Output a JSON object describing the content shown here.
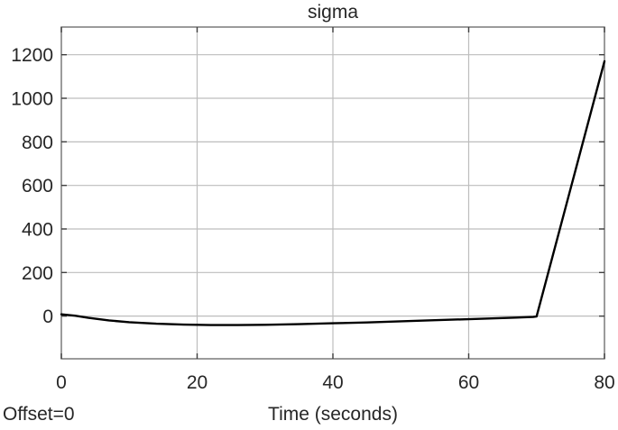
{
  "header": {
    "title": "sigma"
  },
  "footer": {
    "offset_label": "Offset=0"
  },
  "colors": {
    "background": "#ffffff",
    "text": "#262626",
    "box": "#7a7a7a",
    "grid": "#bdbdbd",
    "tick": "#404040",
    "line": "#000000"
  },
  "chart_data": {
    "type": "line",
    "title": "sigma",
    "xlabel": "Time (seconds)",
    "ylabel": "",
    "xlim": [
      0,
      80
    ],
    "ylim": [
      -196,
      1327
    ],
    "x_ticks": [
      0,
      20,
      40,
      60,
      80
    ],
    "y_ticks": [
      0,
      200,
      400,
      600,
      800,
      1000,
      1200
    ],
    "grid": true,
    "legend_position": "none",
    "series": [
      {
        "name": "sigma",
        "color": "#000000",
        "x": [
          0,
          2,
          4,
          7,
          10,
          14,
          18,
          22,
          26,
          30,
          35,
          40,
          45,
          50,
          55,
          60,
          64,
          67,
          69.5,
          70,
          80
        ],
        "y": [
          8,
          2,
          -8,
          -20,
          -28,
          -35,
          -39,
          -41,
          -41,
          -40,
          -37,
          -33,
          -29,
          -24,
          -19,
          -14,
          -10,
          -7,
          -4,
          -2,
          1170
        ]
      }
    ]
  }
}
